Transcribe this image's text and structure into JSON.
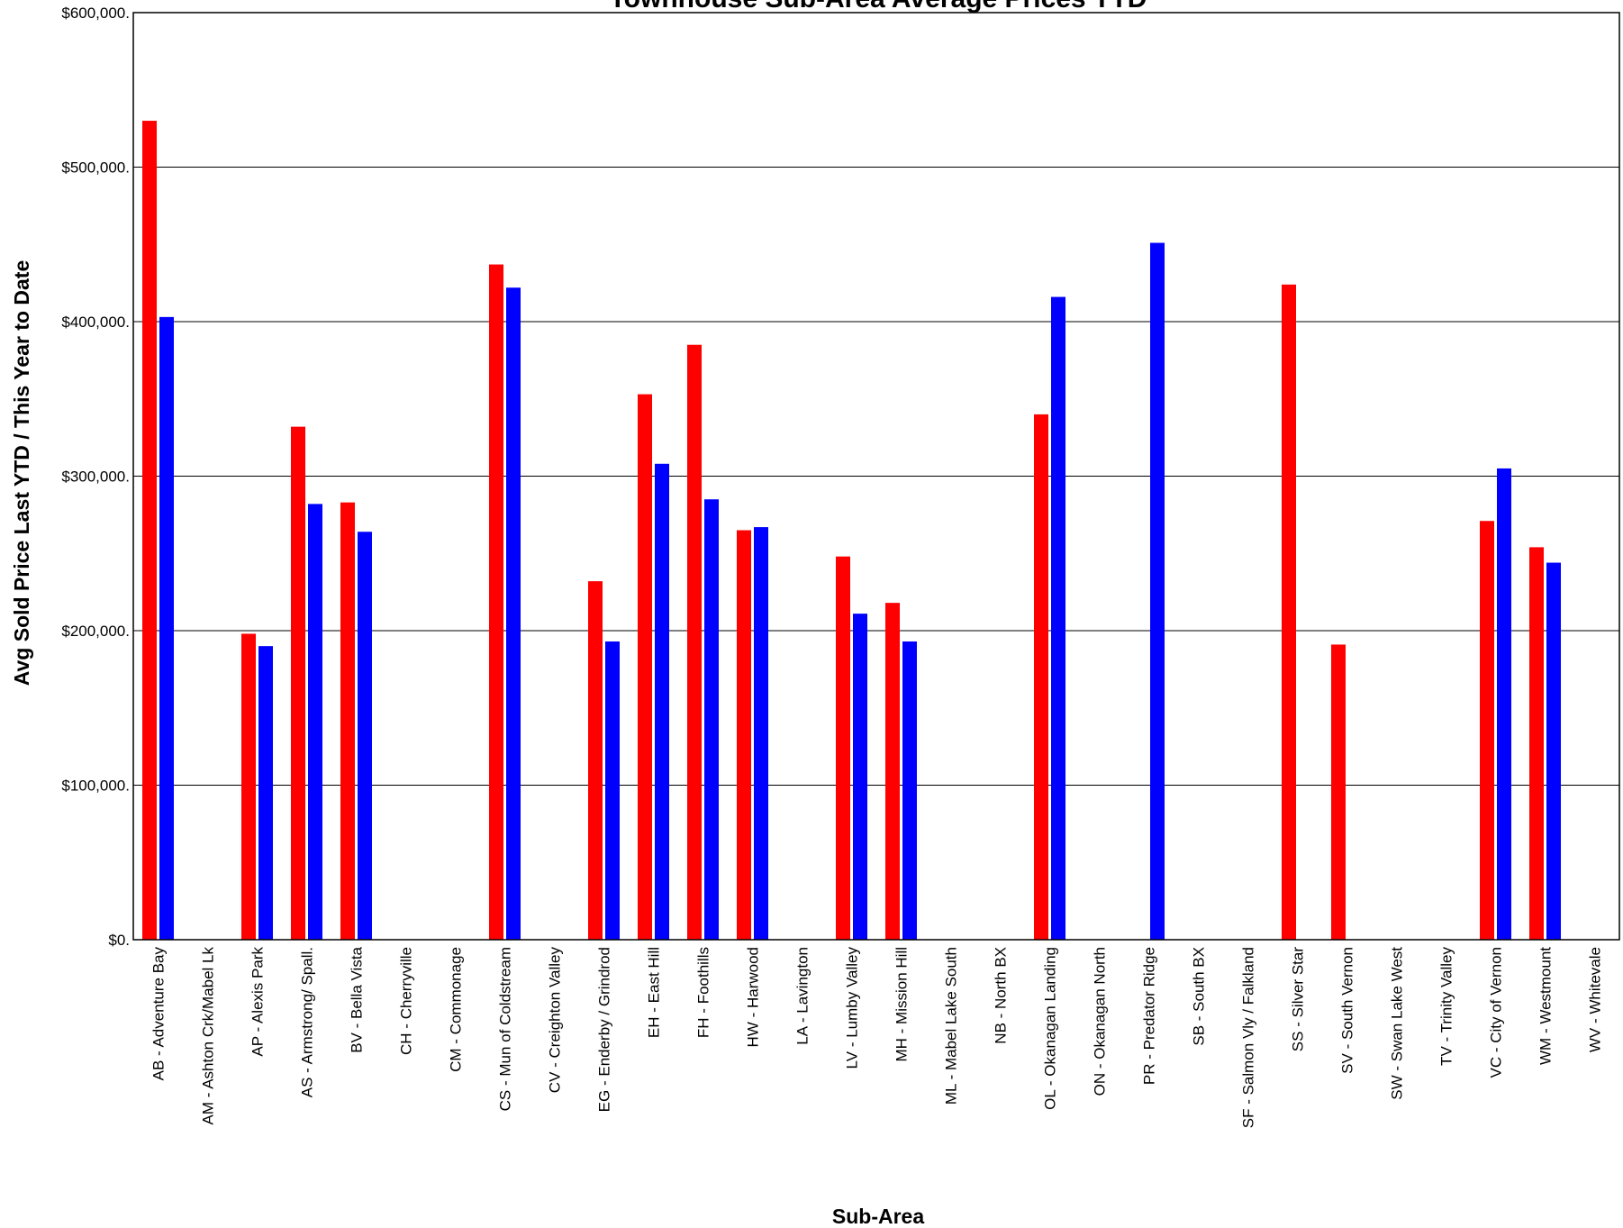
{
  "chart_data": {
    "type": "bar",
    "title": "Townhouse Sub-Area Average Prices YTD",
    "xlabel": "Sub-Area",
    "ylabel": "Avg Sold Price Last YTD / This Year to Date",
    "ylim": [
      0,
      600000
    ],
    "yticks": [
      0,
      100000,
      200000,
      300000,
      400000,
      500000,
      600000
    ],
    "ytick_labels": [
      "$0.",
      "$100,000.",
      "$200,000.",
      "$300,000.",
      "$400,000.",
      "$500,000.",
      "$600,000."
    ],
    "grid": true,
    "categories": [
      "AB - Adventure Bay",
      "AM - Ashton Crk/Mabel Lk",
      "AP - Alexis Park",
      "AS - Armstrong/ Spall.",
      "BV - Bella Vista",
      "CH - Cherryville",
      "CM - Commonage",
      "CS - Mun of Coldstream",
      "CV - Creighton Valley",
      "EG - Enderby / Grindrod",
      "EH - East Hill",
      "FH - Foothills",
      "HW - Harwood",
      "LA - Lavington",
      "LV - Lumby Valley",
      "MH - Mission Hill",
      "ML - Mabel Lake South",
      "NB - North BX",
      "OL - Okanagan Landing",
      "ON - Okanagan North",
      "PR - Predator Ridge",
      "SB - South BX",
      "SF - Salmon Vly / Falkland",
      "SS - Silver Star",
      "SV - South Vernon",
      "SW - Swan Lake West",
      "TV - Trinity Valley",
      "VC - City of Vernon",
      "WM - Westmount",
      "WV - Whitevale"
    ],
    "series": [
      {
        "color": "#ff0000",
        "values": [
          530000,
          0,
          198000,
          332000,
          283000,
          0,
          0,
          437000,
          0,
          232000,
          353000,
          385000,
          265000,
          0,
          248000,
          218000,
          0,
          0,
          340000,
          0,
          0,
          0,
          0,
          424000,
          191000,
          0,
          0,
          271000,
          254000,
          0
        ]
      },
      {
        "color": "#0000ff",
        "values": [
          403000,
          0,
          190000,
          282000,
          264000,
          0,
          0,
          422000,
          0,
          193000,
          308000,
          285000,
          267000,
          0,
          211000,
          193000,
          0,
          0,
          416000,
          0,
          451000,
          0,
          0,
          0,
          0,
          0,
          0,
          305000,
          244000,
          0
        ]
      }
    ]
  }
}
